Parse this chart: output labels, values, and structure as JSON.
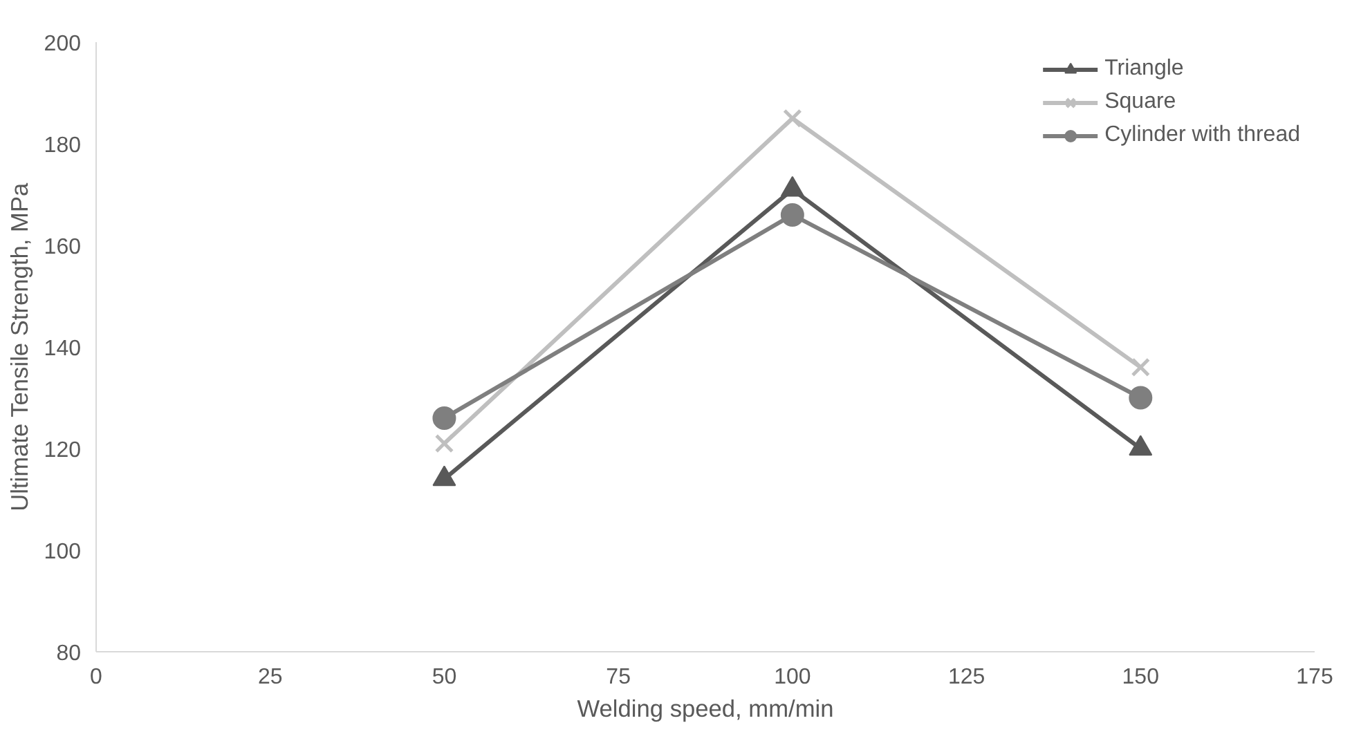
{
  "chart_data": {
    "type": "line",
    "xlabel": "Welding speed, mm/min",
    "ylabel": "Ultimate Tensile Strength, MPa",
    "x": [
      50,
      100,
      150
    ],
    "series": [
      {
        "name": "Triangle",
        "color": "#595959",
        "values": [
          114,
          171,
          120
        ],
        "marker": "triangle"
      },
      {
        "name": "Square",
        "color": "#bfbfbf",
        "values": [
          121,
          185,
          136
        ],
        "marker": "cross"
      },
      {
        "name": "Cylinder with thread",
        "color": "#7f7f7f",
        "values": [
          126,
          166,
          130
        ],
        "marker": "circle"
      }
    ],
    "xlim": [
      0,
      175
    ],
    "xticks": [
      0,
      25,
      50,
      75,
      100,
      125,
      150,
      175
    ],
    "ylim": [
      80,
      200
    ],
    "yticks": [
      80,
      100,
      120,
      140,
      160,
      180,
      200
    ],
    "grid": false,
    "legend": "top right"
  }
}
